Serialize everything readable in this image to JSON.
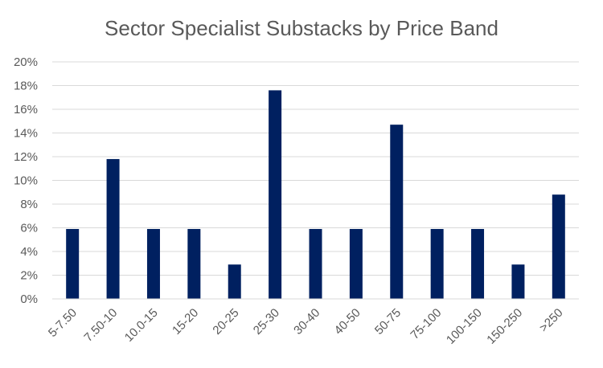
{
  "chart_data": {
    "type": "bar",
    "title": "Sector Specialist Substacks by Price Band",
    "xlabel": "",
    "ylabel": "",
    "categories": [
      "5-7.50",
      "7.50-10",
      "10.0-15",
      "15-20",
      "20-25",
      "25-30",
      "30-40",
      "40-50",
      "50-75",
      "75-100",
      "100-150",
      "150-250",
      ">250"
    ],
    "values": [
      5.9,
      11.8,
      5.9,
      5.9,
      2.9,
      17.6,
      5.9,
      5.9,
      14.7,
      5.9,
      5.9,
      2.9,
      8.8
    ],
    "ylim": [
      0,
      20
    ],
    "yticks": [
      "0%",
      "2%",
      "4%",
      "6%",
      "8%",
      "10%",
      "12%",
      "14%",
      "16%",
      "18%",
      "20%"
    ],
    "grid": true,
    "legend": "none",
    "bar_color": "#002060"
  }
}
